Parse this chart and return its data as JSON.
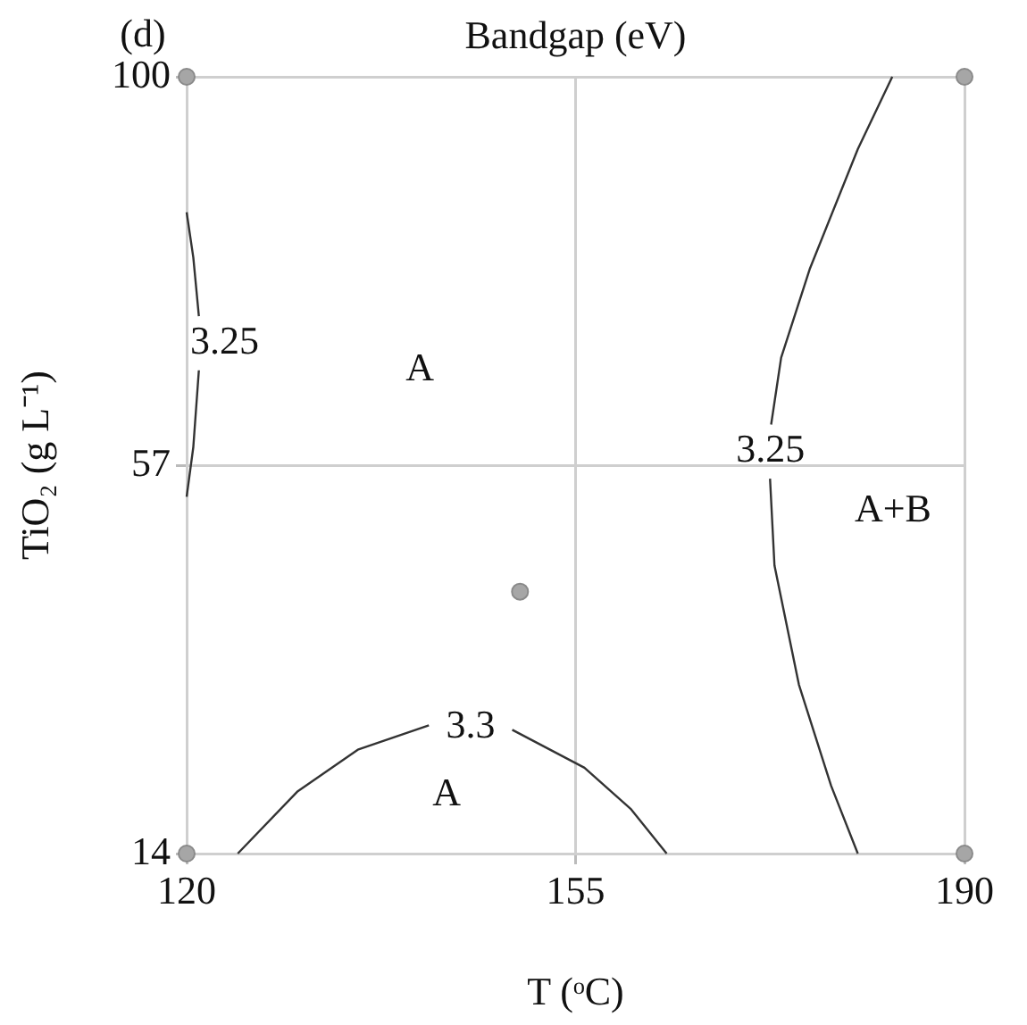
{
  "chart_data": {
    "type": "line",
    "title": "Bandgap (eV)",
    "xlabel": "T (ᵒC)",
    "ylabel": "TiO₂ (g L⁻¹)",
    "xlim": [
      120,
      190
    ],
    "ylim": [
      14,
      100
    ],
    "xticks": [
      120,
      155,
      190
    ],
    "yticks": [
      14,
      57,
      100
    ],
    "grid": true,
    "legend": false,
    "marker": "none",
    "line_style": "solid",
    "series": [
      {
        "name": "3.25",
        "color": "#333333",
        "x": [
          120,
          120.6,
          121.1,
          null,
          121.1,
          120.6,
          120
        ],
        "values": [
          85,
          80,
          73.5,
          null,
          67.5,
          59,
          53.5
        ]
      },
      {
        "name": "3.25",
        "color": "#333333",
        "x": [
          183.5,
          180.4,
          176.1,
          173.5,
          172.6,
          null,
          172.5,
          172.9,
          175.1,
          178,
          180.4
        ],
        "values": [
          100,
          92,
          78.8,
          68.9,
          61.5,
          null,
          55.5,
          45.9,
          32.7,
          21.5,
          14
        ]
      },
      {
        "name": "3.3",
        "color": "#333333",
        "x": [
          124.6,
          130,
          135.4,
          141.8,
          null,
          149.3,
          155.8,
          160,
          163.2
        ],
        "values": [
          14,
          20.9,
          25.5,
          28.2,
          null,
          27.7,
          23.5,
          18.9,
          14
        ]
      },
      {
        "type": "scatter",
        "color": "#a6a6a6",
        "marker": "circle",
        "x": [
          120,
          120,
          190,
          190,
          150
        ],
        "values": [
          14,
          100,
          14,
          100,
          43
        ]
      }
    ],
    "annotations": [
      "(d)",
      "A",
      "A+B",
      "A"
    ]
  }
}
